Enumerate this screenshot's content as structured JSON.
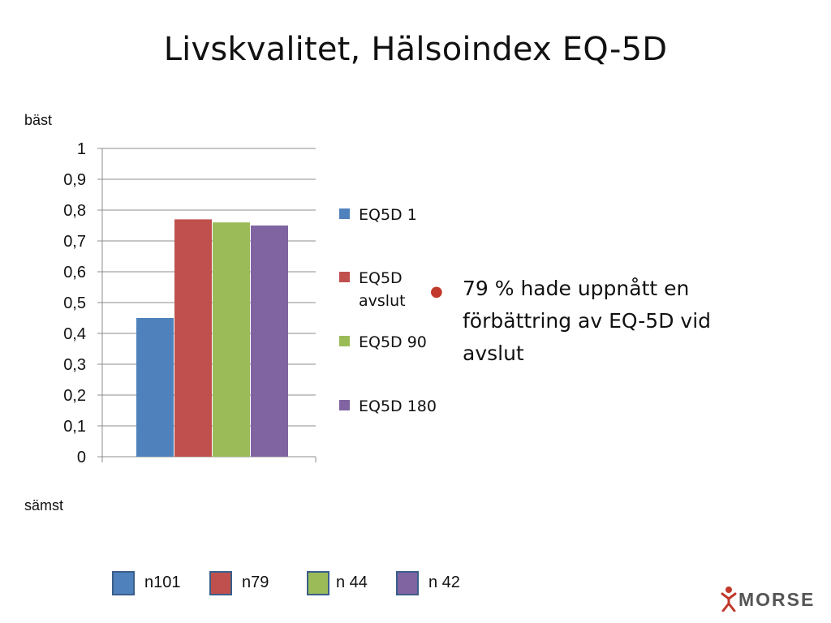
{
  "slide": {
    "title": "Livskvalitet, Hälsoindex EQ-5D",
    "top_label": "bäst",
    "bottom_label": "sämst"
  },
  "chart_data": {
    "type": "bar",
    "categories": [
      ""
    ],
    "series": [
      {
        "name": "EQ5D 1",
        "values": [
          0.45
        ],
        "color": "#4f81bd"
      },
      {
        "name": "EQ5D avslut",
        "values": [
          0.77
        ],
        "color": "#c0504d"
      },
      {
        "name": "EQ5D 90",
        "values": [
          0.76
        ],
        "color": "#9bbb59"
      },
      {
        "name": "EQ5D 180",
        "values": [
          0.75
        ],
        "color": "#8064a2"
      }
    ],
    "ylim": [
      0,
      1
    ],
    "yticks": [
      "0",
      "0,1",
      "0,2",
      "0,3",
      "0,4",
      "0,5",
      "0,6",
      "0,7",
      "0,8",
      "0,9",
      "1"
    ],
    "grid": true,
    "legend_position": "right"
  },
  "bullet": {
    "text": "79 % hade uppnått en förbättring av EQ-5D vid avslut",
    "color": "#c0392b"
  },
  "n_legend": [
    {
      "label": "n101",
      "color": "#4f81bd"
    },
    {
      "label": "n79",
      "color": "#c0504d"
    },
    {
      "label": "n 44",
      "color": "#9bbb59"
    },
    {
      "label": "n 42",
      "color": "#8064a2"
    }
  ],
  "logo": {
    "text": "MORSE",
    "accent": "#c0392b"
  }
}
